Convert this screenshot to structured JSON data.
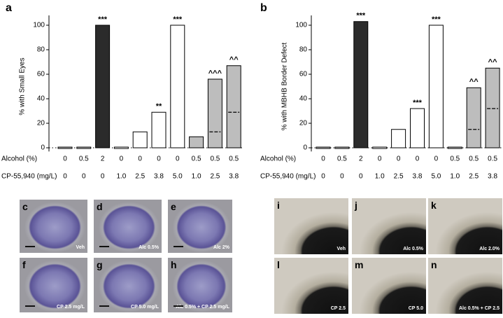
{
  "chart_data": [
    {
      "type": "bar",
      "panel": "a",
      "ylabel": "% with Small Eyes",
      "row_labels": [
        "Alcohol (%)",
        "CP-55,940 (mg/L)"
      ],
      "alcohol": [
        "0",
        "0.5",
        "2",
        "0",
        "0",
        "0",
        "0",
        "0.5",
        "0.5",
        "0.5"
      ],
      "cp": [
        "0",
        "0",
        "0",
        "1.0",
        "2.5",
        "3.8",
        "5.0",
        "1.0",
        "2.5",
        "3.8"
      ],
      "values": [
        0,
        0,
        100,
        0,
        13,
        29,
        100,
        9,
        56,
        67
      ],
      "expected": [
        null,
        null,
        null,
        null,
        null,
        null,
        null,
        null,
        13,
        29
      ],
      "colors": [
        "#bdbdbd",
        "#bdbdbd",
        "#2b2b2b",
        "#ffffff",
        "#ffffff",
        "#ffffff",
        "#ffffff",
        "#bdbdbd",
        "#bdbdbd",
        "#bdbdbd"
      ],
      "annotations": [
        null,
        null,
        "***",
        null,
        null,
        "**",
        "***",
        null,
        "^^^",
        "^^"
      ],
      "ylim": [
        -3,
        108
      ],
      "yticks": [
        0,
        20,
        40,
        60,
        80,
        100
      ]
    },
    {
      "type": "bar",
      "panel": "b",
      "ylabel": "% with MBHB Border Defect",
      "row_labels": [
        "Alcohol (%)",
        "CP-55,940 (mg/L)"
      ],
      "alcohol": [
        "0",
        "0.5",
        "2",
        "0",
        "0",
        "0",
        "0",
        "0.5",
        "0.5",
        "0.5"
      ],
      "cp": [
        "0",
        "0",
        "0",
        "1.0",
        "2.5",
        "3.8",
        "5.0",
        "1.0",
        "2.5",
        "3.8"
      ],
      "values": [
        0,
        0,
        103,
        0,
        15,
        32,
        100,
        0,
        49,
        65
      ],
      "expected": [
        null,
        null,
        null,
        null,
        null,
        null,
        null,
        null,
        15,
        32
      ],
      "colors": [
        "#bdbdbd",
        "#bdbdbd",
        "#2b2b2b",
        "#ffffff",
        "#ffffff",
        "#ffffff",
        "#ffffff",
        "#bdbdbd",
        "#bdbdbd",
        "#bdbdbd"
      ],
      "annotations": [
        null,
        null,
        "***",
        null,
        null,
        "***",
        "***",
        null,
        "^^",
        "^^"
      ],
      "ylim": [
        -3,
        108
      ],
      "yticks": [
        0,
        20,
        40,
        60,
        80,
        100
      ]
    }
  ],
  "images_left": [
    {
      "panel": "c",
      "caption": "Veh"
    },
    {
      "panel": "d",
      "caption": "Alc 0.5%"
    },
    {
      "panel": "e",
      "caption": "Alc 2%"
    },
    {
      "panel": "f",
      "caption": "CP 2.5 mg/L"
    },
    {
      "panel": "g",
      "caption": "CP 5.0 mg/L"
    },
    {
      "panel": "h",
      "caption": "Alc 0.5% + CP 2.5 mg/L"
    }
  ],
  "images_right": [
    {
      "panel": "i",
      "caption": "Veh"
    },
    {
      "panel": "j",
      "caption": "Alc 0.5%"
    },
    {
      "panel": "k",
      "caption": "Alc 2.0%"
    },
    {
      "panel": "l",
      "caption": "CP 2.5"
    },
    {
      "panel": "m",
      "caption": "CP 5.0"
    },
    {
      "panel": "n",
      "caption": "Alc 0.5% + CP 2.5"
    }
  ]
}
